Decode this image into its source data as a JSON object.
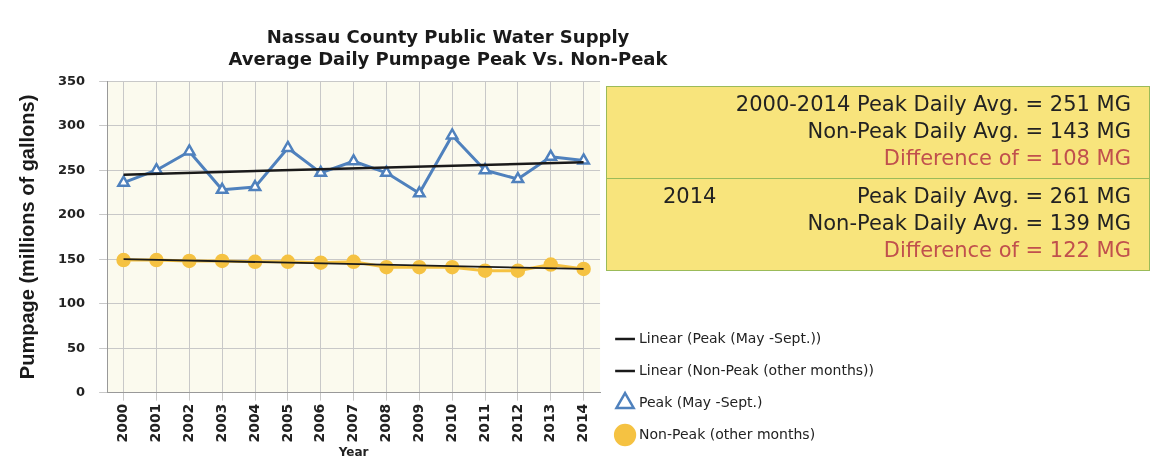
{
  "chart_data": {
    "type": "line",
    "title": "Nassau County Public Water Supply\nAverage Daily Pumpage Peak Vs. Non-Peak",
    "xlabel": "Year",
    "ylabel": "Pumpage (millions of gallons)",
    "categories": [
      "2000",
      "2001",
      "2002",
      "2003",
      "2004",
      "2005",
      "2006",
      "2007",
      "2008",
      "2009",
      "2010",
      "2011",
      "2012",
      "2013",
      "2014"
    ],
    "series": [
      {
        "name": "Peak (May -Sept.)",
        "color": "#4f81bd",
        "marker": "triangle",
        "values": [
          236,
          250,
          271,
          228,
          231,
          275,
          247,
          260,
          247,
          224,
          289,
          250,
          240,
          265,
          261
        ]
      },
      {
        "name": "Non-Peak (other months)",
        "color": "#f5c242",
        "marker": "circle",
        "values": [
          149,
          149,
          148,
          148,
          147,
          147,
          146,
          147,
          141,
          141,
          141,
          137,
          137,
          144,
          139
        ]
      },
      {
        "name": "Linear (Peak (May -Sept.))",
        "color": "#1a1a1a",
        "marker": "none",
        "values": [
          245,
          null,
          null,
          null,
          null,
          null,
          null,
          null,
          null,
          null,
          null,
          null,
          null,
          null,
          259
        ]
      },
      {
        "name": "Linear (Non-Peak (other months))",
        "color": "#1a1a1a",
        "marker": "none",
        "values": [
          150,
          null,
          null,
          null,
          null,
          null,
          null,
          null,
          null,
          null,
          null,
          null,
          null,
          null,
          139
        ]
      }
    ],
    "ylim": [
      0,
      350
    ],
    "yticks": [
      0,
      50,
      100,
      150,
      200,
      250,
      300,
      350
    ],
    "grid": true,
    "legend": "right",
    "annotations": [
      "2000-2014 Peak Daily Avg. = 251 MG",
      "Non-Peak Daily Avg. = 143 MG",
      "Difference of = 108 MG",
      "2014",
      "Peak Daily Avg. = 261 MG",
      "Non-Peak Daily Avg. = 139 MG",
      "Difference of = 122 MG"
    ]
  }
}
